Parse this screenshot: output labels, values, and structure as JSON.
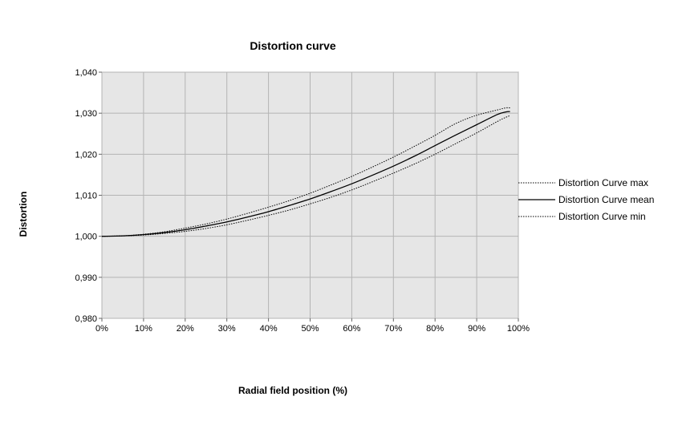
{
  "chart_data": {
    "type": "line",
    "title": "Distortion curve",
    "xlabel": "Radial field position (%)",
    "ylabel": "Distortion",
    "x_tick_labels": [
      "0%",
      "10%",
      "20%",
      "30%",
      "40%",
      "50%",
      "60%",
      "70%",
      "80%",
      "90%",
      "100%"
    ],
    "y_tick_labels": [
      "0,980",
      "0,990",
      "1,000",
      "1,010",
      "1,020",
      "1,030",
      "1,040"
    ],
    "xlim": [
      0,
      100
    ],
    "ylim": [
      0.98,
      1.04
    ],
    "x_ticks": [
      0,
      10,
      20,
      30,
      40,
      50,
      60,
      70,
      80,
      90,
      100
    ],
    "y_ticks": [
      0.98,
      0.99,
      1.0,
      1.01,
      1.02,
      1.03,
      1.04
    ],
    "grid": true,
    "legend_position": "right",
    "plot_background": "#e6e6e6",
    "grid_color": "#b4b4b4",
    "x": [
      0,
      5,
      10,
      15,
      20,
      25,
      30,
      35,
      40,
      45,
      50,
      55,
      60,
      65,
      70,
      75,
      80,
      85,
      90,
      95,
      97,
      98
    ],
    "series": [
      {
        "name": "Distortion Curve max",
        "style": "dotted",
        "values": [
          1.0,
          1.0001,
          1.0005,
          1.0011,
          1.002,
          1.003,
          1.0042,
          1.0056,
          1.0071,
          1.0087,
          1.0105,
          1.0125,
          1.0146,
          1.0169,
          1.0193,
          1.0219,
          1.0246,
          1.0275,
          1.0295,
          1.0308,
          1.0313,
          1.0313
        ]
      },
      {
        "name": "Distortion Curve mean",
        "style": "solid",
        "values": [
          1.0,
          1.0001,
          1.0004,
          1.0009,
          1.0016,
          1.0025,
          1.0035,
          1.0047,
          1.006,
          1.0075,
          1.0091,
          1.0109,
          1.0128,
          1.0149,
          1.0171,
          1.0195,
          1.0221,
          1.0247,
          1.0272,
          1.0297,
          1.0303,
          1.0304
        ]
      },
      {
        "name": "Distortion Curve min",
        "style": "dotted",
        "values": [
          1.0,
          1.0001,
          1.0003,
          1.0007,
          1.0012,
          1.0019,
          1.0028,
          1.0039,
          1.0051,
          1.0064,
          1.0079,
          1.0095,
          1.0113,
          1.0133,
          1.0154,
          1.0176,
          1.02,
          1.0226,
          1.0252,
          1.028,
          1.029,
          1.0294
        ]
      }
    ]
  }
}
